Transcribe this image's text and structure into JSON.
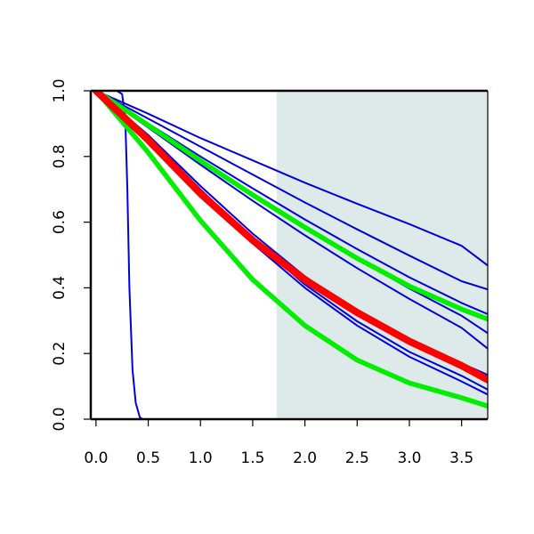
{
  "chart_data": {
    "type": "line",
    "title": "",
    "xlabel": "",
    "ylabel": "",
    "xlim": [
      -0.05,
      3.75
    ],
    "ylim": [
      0.0,
      1.0
    ],
    "x_ticks": [
      0.0,
      0.5,
      1.0,
      1.5,
      2.0,
      2.5,
      3.0,
      3.5
    ],
    "x_tick_labels": [
      "0.0",
      "0.5",
      "1.0",
      "1.5",
      "2.0",
      "2.5",
      "3.0",
      "3.5"
    ],
    "y_ticks": [
      0.0,
      0.2,
      0.4,
      0.6,
      0.8,
      1.0
    ],
    "y_tick_labels": [
      "0.0",
      "0.2",
      "0.4",
      "0.6",
      "0.8",
      "1.0"
    ],
    "grid": false,
    "shaded_region": {
      "x_from": 1.73,
      "x_to": 3.75,
      "color": "#deeaea"
    },
    "colors": {
      "blue": "#0000dd",
      "green": "#00ee00",
      "red": "#ff0000",
      "axis": "#000000"
    },
    "series": [
      {
        "color": "blue",
        "x": [
          0,
          0.2,
          0.25,
          0.28,
          0.3,
          0.32,
          0.35,
          0.38,
          0.42,
          0.45,
          3.75
        ],
        "y": [
          1,
          1,
          0.99,
          0.92,
          0.7,
          0.4,
          0.15,
          0.05,
          0.005,
          0,
          0
        ]
      },
      {
        "color": "blue",
        "x": [
          0,
          0.5,
          1.0,
          1.5,
          2.0,
          2.5,
          3.0,
          3.5,
          3.75
        ],
        "y": [
          1,
          0.93,
          0.856,
          0.788,
          0.72,
          0.656,
          0.594,
          0.528,
          0.468
        ]
      },
      {
        "color": "blue",
        "x": [
          0,
          0.5,
          1.0,
          1.5,
          2.0,
          2.5,
          3.0,
          3.5,
          3.75
        ],
        "y": [
          1,
          0.915,
          0.83,
          0.745,
          0.66,
          0.578,
          0.498,
          0.42,
          0.395
        ]
      },
      {
        "color": "blue",
        "x": [
          0,
          0.5,
          1.0,
          1.5,
          2.0,
          2.5,
          3.0,
          3.5,
          3.75
        ],
        "y": [
          1,
          0.9,
          0.8,
          0.703,
          0.608,
          0.518,
          0.432,
          0.354,
          0.32
        ]
      },
      {
        "color": "blue",
        "x": [
          0,
          0.5,
          1.0,
          1.5,
          2.0,
          2.5,
          3.0,
          3.5,
          3.75
        ],
        "y": [
          1,
          0.895,
          0.79,
          0.685,
          0.585,
          0.488,
          0.398,
          0.315,
          0.262
        ]
      },
      {
        "color": "blue",
        "x": [
          0,
          0.5,
          1.0,
          1.5,
          2.0,
          2.5,
          3.0,
          3.5,
          3.75
        ],
        "y": [
          1,
          0.888,
          0.775,
          0.665,
          0.56,
          0.46,
          0.366,
          0.278,
          0.215
        ]
      },
      {
        "color": "blue",
        "x": [
          0,
          0.5,
          1.0,
          1.5,
          2.0,
          2.5,
          3.0,
          3.5,
          3.75
        ],
        "y": [
          1,
          0.865,
          0.71,
          0.565,
          0.435,
          0.326,
          0.238,
          0.17,
          0.135
        ]
      },
      {
        "color": "blue",
        "x": [
          0,
          0.5,
          1.0,
          1.5,
          2.0,
          2.5,
          3.0,
          3.5,
          3.75
        ],
        "y": [
          1,
          0.86,
          0.7,
          0.548,
          0.41,
          0.298,
          0.205,
          0.132,
          0.09
        ]
      },
      {
        "color": "blue",
        "x": [
          0,
          0.5,
          1.0,
          1.5,
          2.0,
          2.5,
          3.0,
          3.5,
          3.75
        ],
        "y": [
          1,
          0.855,
          0.69,
          0.535,
          0.4,
          0.285,
          0.19,
          0.115,
          0.075
        ]
      },
      {
        "color": "green",
        "x": [
          0,
          0.5,
          1.0,
          1.5,
          2.0,
          2.5,
          3.0,
          3.5,
          3.75
        ],
        "y": [
          1,
          0.895,
          0.787,
          0.683,
          0.584,
          0.49,
          0.405,
          0.335,
          0.305
        ]
      },
      {
        "color": "green",
        "x": [
          0,
          0.5,
          1.0,
          1.5,
          2.0,
          2.5,
          3.0,
          3.5,
          3.75
        ],
        "y": [
          1,
          0.812,
          0.605,
          0.425,
          0.285,
          0.18,
          0.11,
          0.065,
          0.04
        ]
      },
      {
        "color": "red",
        "x": [
          0,
          0.5,
          1.0,
          1.5,
          2.0,
          2.5,
          3.0,
          3.5,
          3.75
        ],
        "y": [
          1,
          0.85,
          0.687,
          0.545,
          0.425,
          0.325,
          0.237,
          0.163,
          0.12
        ]
      }
    ]
  }
}
